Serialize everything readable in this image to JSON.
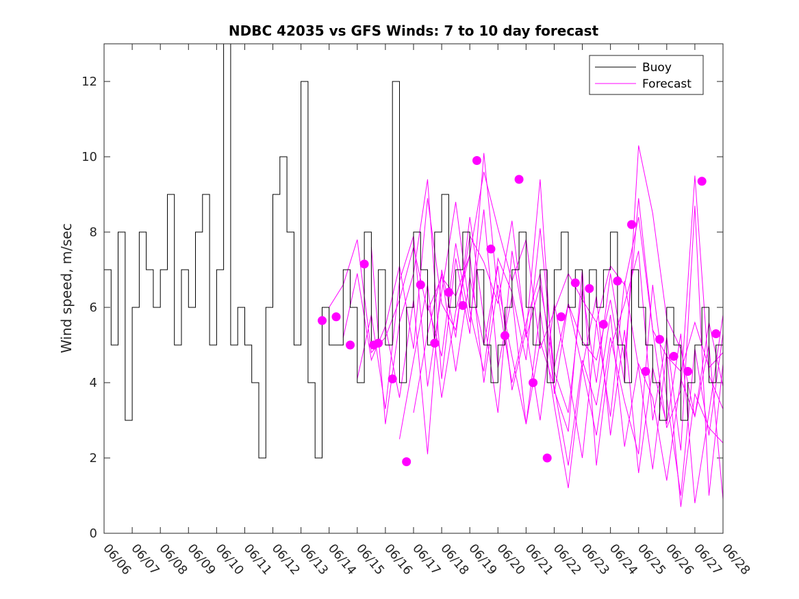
{
  "chart_data": {
    "type": "line",
    "title": "NDBC 42035 vs GFS Winds: 7 to 10 day forecast",
    "xlabel": "",
    "ylabel": "Wind speed, m/sec",
    "xlim": [
      "06/06",
      "06/28"
    ],
    "ylim": [
      0,
      13
    ],
    "x_ticks": [
      "06/06",
      "06/07",
      "06/08",
      "06/09",
      "06/10",
      "06/11",
      "06/12",
      "06/13",
      "06/14",
      "06/15",
      "06/16",
      "06/17",
      "06/18",
      "06/19",
      "06/20",
      "06/21",
      "06/22",
      "06/23",
      "06/24",
      "06/25",
      "06/26",
      "06/27",
      "06/28"
    ],
    "y_ticks": [
      0,
      2,
      4,
      6,
      8,
      10,
      12
    ],
    "grid": false,
    "legend": {
      "placement": "top-right",
      "entries": [
        "Buoy",
        "Forecast"
      ]
    },
    "colors": {
      "buoy": "#000000",
      "forecast": "#ff00ff"
    },
    "buoy": {
      "x": [
        "06/06 00:00",
        "06/06 06:00",
        "06/06 12:00",
        "06/06 18:00",
        "06/07 00:00",
        "06/07 06:00",
        "06/07 12:00",
        "06/07 18:00",
        "06/08 00:00",
        "06/08 06:00",
        "06/08 12:00",
        "06/08 18:00",
        "06/09 00:00",
        "06/09 06:00",
        "06/09 12:00",
        "06/09 18:00",
        "06/10 00:00",
        "06/10 06:00",
        "06/10 12:00",
        "06/10 18:00",
        "06/11 00:00",
        "06/11 06:00",
        "06/11 12:00",
        "06/11 18:00",
        "06/12 00:00",
        "06/12 06:00",
        "06/12 12:00",
        "06/12 18:00",
        "06/13 00:00",
        "06/13 06:00",
        "06/13 12:00",
        "06/13 18:00",
        "06/14 00:00",
        "06/14 06:00",
        "06/14 12:00",
        "06/14 18:00",
        "06/15 00:00",
        "06/15 06:00",
        "06/15 12:00",
        "06/15 18:00",
        "06/16 00:00",
        "06/16 06:00",
        "06/16 12:00",
        "06/16 18:00",
        "06/17 00:00",
        "06/17 06:00",
        "06/17 12:00",
        "06/17 18:00",
        "06/18 00:00",
        "06/18 06:00",
        "06/18 12:00",
        "06/18 18:00",
        "06/19 00:00",
        "06/19 06:00",
        "06/19 12:00",
        "06/19 18:00",
        "06/20 00:00",
        "06/20 06:00",
        "06/20 12:00",
        "06/20 18:00",
        "06/21 00:00",
        "06/21 06:00",
        "06/21 12:00",
        "06/21 18:00",
        "06/22 00:00",
        "06/22 06:00",
        "06/22 12:00",
        "06/22 18:00",
        "06/23 00:00",
        "06/23 06:00",
        "06/23 12:00",
        "06/23 18:00",
        "06/24 00:00",
        "06/24 06:00",
        "06/24 12:00",
        "06/24 18:00",
        "06/25 00:00",
        "06/25 06:00",
        "06/25 12:00",
        "06/25 18:00",
        "06/26 00:00",
        "06/26 06:00",
        "06/26 12:00",
        "06/26 18:00",
        "06/27 00:00",
        "06/27 06:00",
        "06/27 12:00",
        "06/27 18:00",
        "06/28 00:00"
      ],
      "values": [
        7,
        5,
        8,
        3,
        6,
        8,
        7,
        6,
        7,
        9,
        5,
        7,
        6,
        8,
        9,
        5,
        7,
        13,
        5,
        6,
        5,
        4,
        2,
        6,
        9,
        10,
        8,
        5,
        12,
        4,
        2,
        6,
        5,
        5,
        7,
        6,
        4,
        8,
        5,
        7,
        5,
        12,
        4,
        6,
        8,
        7,
        5,
        8,
        9,
        6,
        7,
        8,
        6,
        7,
        5,
        4,
        5,
        6,
        7,
        8,
        6,
        5,
        7,
        4,
        7,
        8,
        6,
        7,
        5,
        7,
        6,
        7,
        8,
        5,
        4,
        7,
        6,
        5,
        4,
        3,
        6,
        5,
        3,
        4,
        5,
        6,
        4,
        5,
        6
      ]
    },
    "forecast": {
      "series": [
        {
          "x": [
            "06/14 00:00",
            "06/14 12:00",
            "06/15 00:00",
            "06/15 12:00",
            "06/16 00:00",
            "06/16 12:00",
            "06/17 00:00",
            "06/17 12:00",
            "06/18 00:00",
            "06/18 12:00",
            "06/19 00:00",
            "06/19 12:00",
            "06/20 00:00",
            "06/20 12:00",
            "06/21 00:00",
            "06/21 12:00",
            "06/22 00:00",
            "06/22 12:00",
            "06/23 00:00",
            "06/23 12:00",
            "06/24 00:00",
            "06/24 12:00",
            "06/25 00:00",
            "06/25 12:00",
            "06/26 00:00",
            "06/26 12:00",
            "06/27 00:00",
            "06/27 12:00",
            "06/28 00:00"
          ],
          "values": [
            6.0,
            6.6,
            7.8,
            4.8,
            5.2,
            6.2,
            7.6,
            5.9,
            6.8,
            6.3,
            7.4,
            9.6,
            8.1,
            6.7,
            7.8,
            4.9,
            5.9,
            6.9,
            6.2,
            5.6,
            7.1,
            6.6,
            8.4,
            5.4,
            4.7,
            4.3,
            5.6,
            4.4,
            4.8
          ]
        },
        {
          "x": [
            "06/14 12:00",
            "06/15 00:00",
            "06/15 12:00",
            "06/16 00:00",
            "06/16 12:00",
            "06/17 00:00",
            "06/17 12:00",
            "06/18 00:00",
            "06/18 12:00",
            "06/19 00:00",
            "06/19 12:00",
            "06/20 00:00",
            "06/20 12:00",
            "06/21 00:00",
            "06/21 12:00",
            "06/22 00:00",
            "06/22 12:00",
            "06/23 00:00",
            "06/23 12:00",
            "06/24 00:00",
            "06/24 12:00",
            "06/25 00:00",
            "06/25 12:00",
            "06/26 00:00",
            "06/26 12:00",
            "06/27 00:00",
            "06/27 12:00",
            "06/28 00:00"
          ],
          "values": [
            5.2,
            6.9,
            4.6,
            5.5,
            7.1,
            4.9,
            8.9,
            6.1,
            5.4,
            7.9,
            7.2,
            6.1,
            8.3,
            5.2,
            6.6,
            4.4,
            6.1,
            5.1,
            4.6,
            6.2,
            4.0,
            10.3,
            8.5,
            5.7,
            4.9,
            3.1,
            5.6,
            3.9
          ]
        },
        {
          "x": [
            "06/15 00:00",
            "06/15 12:00",
            "06/16 00:00",
            "06/16 12:00",
            "06/17 00:00",
            "06/17 12:00",
            "06/18 00:00",
            "06/18 12:00",
            "06/19 00:00",
            "06/19 12:00",
            "06/20 00:00",
            "06/20 12:00",
            "06/21 00:00",
            "06/21 12:00",
            "06/22 00:00",
            "06/22 12:00",
            "06/23 00:00",
            "06/23 12:00",
            "06/24 00:00",
            "06/24 12:00",
            "06/25 00:00",
            "06/25 12:00",
            "06/26 00:00",
            "06/26 12:00",
            "06/27 00:00",
            "06/27 12:00",
            "06/28 00:00"
          ],
          "values": [
            4.1,
            5.8,
            3.3,
            6.7,
            7.9,
            3.9,
            6.4,
            8.8,
            5.9,
            4.3,
            7.3,
            6.4,
            4.6,
            8.1,
            4.3,
            3.2,
            6.5,
            4.0,
            6.9,
            4.6,
            8.9,
            5.4,
            2.8,
            3.8,
            9.5,
            4.2,
            3.3
          ]
        },
        {
          "x": [
            "06/15 12:00",
            "06/16 00:00",
            "06/16 12:00",
            "06/17 00:00",
            "06/17 12:00",
            "06/18 00:00",
            "06/18 12:00",
            "06/19 00:00",
            "06/19 12:00",
            "06/20 00:00",
            "06/20 12:00",
            "06/21 00:00",
            "06/21 12:00",
            "06/22 00:00",
            "06/22 12:00",
            "06/23 00:00",
            "06/23 12:00",
            "06/24 00:00",
            "06/24 12:00",
            "06/25 00:00",
            "06/25 12:00",
            "06/26 00:00",
            "06/26 12:00",
            "06/27 00:00",
            "06/27 12:00",
            "06/28 00:00"
          ],
          "values": [
            7.6,
            2.9,
            5.6,
            6.9,
            9.4,
            4.1,
            7.3,
            5.3,
            10.1,
            6.3,
            4.0,
            5.6,
            6.9,
            3.8,
            2.7,
            7.0,
            1.8,
            4.9,
            6.1,
            7.5,
            3.0,
            5.2,
            2.2,
            8.7,
            1.0,
            4.5
          ]
        },
        {
          "x": [
            "06/16 00:00",
            "06/16 12:00",
            "06/17 00:00",
            "06/17 12:00",
            "06/18 00:00",
            "06/18 12:00",
            "06/19 00:00",
            "06/19 12:00",
            "06/20 00:00",
            "06/20 12:00",
            "06/21 00:00",
            "06/21 12:00",
            "06/22 00:00",
            "06/22 12:00",
            "06/23 00:00",
            "06/23 12:00",
            "06/24 00:00",
            "06/24 12:00",
            "06/25 00:00",
            "06/25 12:00",
            "06/26 00:00",
            "06/26 12:00",
            "06/27 00:00",
            "06/27 12:00",
            "06/28 00:00"
          ],
          "values": [
            5.5,
            3.6,
            6.2,
            2.1,
            7.0,
            5.2,
            8.4,
            5.7,
            3.2,
            7.5,
            5.3,
            9.4,
            3.7,
            6.1,
            4.4,
            2.6,
            5.2,
            3.5,
            2.1,
            6.6,
            3.6,
            1.0,
            4.9,
            2.6,
            5.3
          ]
        },
        {
          "x": [
            "06/16 12:00",
            "06/17 00:00",
            "06/17 12:00",
            "06/18 00:00",
            "06/18 12:00",
            "06/19 00:00",
            "06/19 12:00",
            "06/20 00:00",
            "06/20 12:00",
            "06/21 00:00",
            "06/21 12:00",
            "06/22 00:00",
            "06/22 12:00",
            "06/23 00:00",
            "06/23 12:00",
            "06/24 00:00",
            "06/24 12:00",
            "06/25 00:00",
            "06/25 12:00",
            "06/26 00:00",
            "06/26 12:00",
            "06/27 00:00",
            "06/27 12:00",
            "06/28 00:00"
          ],
          "values": [
            2.5,
            4.6,
            6.6,
            3.6,
            5.9,
            7.4,
            4.0,
            6.6,
            4.7,
            2.9,
            5.9,
            3.4,
            1.2,
            4.4,
            6.3,
            2.6,
            5.4,
            1.6,
            4.4,
            2.9,
            5.3,
            0.8,
            3.2,
            5.8
          ]
        },
        {
          "x": [
            "06/17 00:00",
            "06/17 12:00",
            "06/18 00:00",
            "06/18 12:00",
            "06/19 00:00",
            "06/19 12:00",
            "06/20 00:00",
            "06/20 12:00",
            "06/21 00:00",
            "06/21 12:00",
            "06/22 00:00",
            "06/22 12:00",
            "06/23 00:00",
            "06/23 12:00",
            "06/24 00:00",
            "06/24 12:00",
            "06/25 00:00",
            "06/25 12:00",
            "06/26 00:00",
            "06/26 12:00",
            "06/27 00:00",
            "06/27 12:00",
            "06/28 00:00"
          ],
          "values": [
            3.2,
            5.3,
            6.9,
            4.3,
            6.8,
            5.0,
            7.1,
            3.8,
            5.4,
            3.0,
            6.1,
            4.2,
            2.0,
            5.6,
            3.1,
            6.7,
            4.4,
            1.7,
            4.8,
            0.7,
            3.7,
            2.8,
            2.4
          ]
        },
        {
          "x": [
            "06/17 12:00",
            "06/18 00:00",
            "06/18 12:00",
            "06/19 00:00",
            "06/19 12:00",
            "06/20 00:00",
            "06/20 12:00",
            "06/21 00:00",
            "06/21 12:00",
            "06/22 00:00",
            "06/22 12:00",
            "06/23 00:00",
            "06/23 12:00",
            "06/24 00:00",
            "06/24 12:00",
            "06/25 00:00",
            "06/25 12:00",
            "06/26 00:00",
            "06/26 12:00",
            "06/27 00:00",
            "06/27 12:00",
            "06/28 00:00"
          ],
          "values": [
            6.1,
            4.7,
            7.7,
            5.6,
            8.6,
            4.4,
            6.3,
            2.9,
            5.1,
            3.9,
            1.8,
            4.6,
            3.4,
            5.8,
            2.3,
            4.5,
            3.6,
            1.4,
            4.1,
            3.1,
            5.0,
            0.9
          ]
        }
      ],
      "markers": {
        "x": [
          "06/13 18:00",
          "06/14 06:00",
          "06/14 18:00",
          "06/15 06:00",
          "06/15 14:00",
          "06/15 18:00",
          "06/16 06:00",
          "06/16 18:00",
          "06/17 06:00",
          "06/17 18:00",
          "06/18 06:00",
          "06/18 18:00",
          "06/19 06:00",
          "06/19 18:00",
          "06/20 06:00",
          "06/20 18:00",
          "06/21 06:00",
          "06/21 18:00",
          "06/22 06:00",
          "06/22 18:00",
          "06/23 06:00",
          "06/23 18:00",
          "06/24 06:00",
          "06/24 18:00",
          "06/25 06:00",
          "06/25 18:00",
          "06/26 06:00",
          "06/26 18:00",
          "06/27 06:00",
          "06/27 18:00"
        ],
        "values": [
          5.65,
          5.75,
          5.0,
          7.15,
          5.0,
          5.05,
          4.1,
          1.9,
          6.6,
          5.05,
          6.4,
          6.05,
          9.9,
          7.55,
          5.25,
          9.4,
          4.0,
          2.0,
          5.75,
          6.65,
          6.5,
          5.55,
          6.7,
          8.2,
          4.3,
          5.15,
          4.7,
          4.3,
          9.35,
          5.3
        ]
      }
    }
  }
}
